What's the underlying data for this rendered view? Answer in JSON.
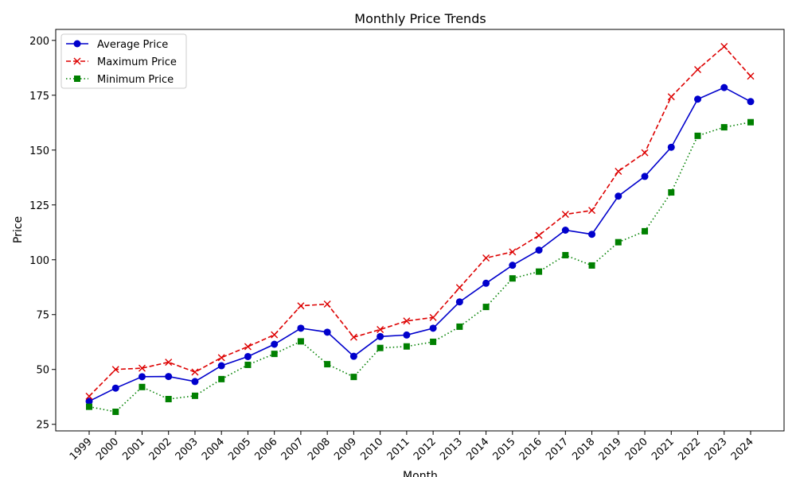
{
  "chart_data": {
    "type": "line",
    "title": "Monthly Price Trends",
    "xlabel": "Month",
    "ylabel": "Price",
    "ylim": [
      22,
      205
    ],
    "yticks": [
      25,
      50,
      75,
      100,
      125,
      150,
      175,
      200
    ],
    "grid": false,
    "legend_position": "top-left",
    "categories": [
      "1999",
      "2000",
      "2001",
      "2002",
      "2003",
      "2004",
      "2005",
      "2006",
      "2007",
      "2008",
      "2009",
      "2010",
      "2011",
      "2012",
      "2013",
      "2014",
      "2015",
      "2016",
      "2017",
      "2018",
      "2019",
      "2020",
      "2021",
      "2022",
      "2023",
      "2024"
    ],
    "series": [
      {
        "name": "Average Price",
        "color": "#0000cc",
        "line_style": "solid",
        "marker": "circle",
        "values": [
          35.5,
          41.5,
          46.7,
          46.8,
          44.5,
          51.7,
          55.9,
          61.5,
          68.8,
          67.0,
          56.0,
          65.0,
          65.7,
          68.8,
          80.8,
          89.3,
          97.5,
          104.4,
          113.5,
          111.6,
          129.0,
          138.0,
          151.3,
          173.2,
          178.5,
          172.1
        ]
      },
      {
        "name": "Maximum Price",
        "color": "#dd0000",
        "line_style": "dashed",
        "marker": "x",
        "values": [
          37.8,
          50.0,
          50.6,
          53.3,
          48.8,
          55.4,
          60.4,
          65.8,
          79.0,
          79.8,
          64.7,
          68.2,
          72.1,
          73.7,
          87.3,
          100.8,
          103.6,
          111.1,
          120.7,
          122.5,
          140.3,
          148.8,
          174.3,
          186.7,
          197.2,
          183.7
        ]
      },
      {
        "name": "Minimum Price",
        "color": "#008000",
        "line_style": "dotted",
        "marker": "square",
        "values": [
          33.0,
          30.7,
          42.0,
          36.5,
          38.0,
          45.6,
          52.1,
          57.1,
          62.8,
          52.4,
          46.6,
          59.8,
          60.5,
          62.6,
          69.5,
          78.5,
          91.5,
          94.6,
          102.1,
          97.4,
          108.0,
          113.0,
          130.7,
          156.5,
          160.4,
          162.7
        ]
      }
    ]
  }
}
